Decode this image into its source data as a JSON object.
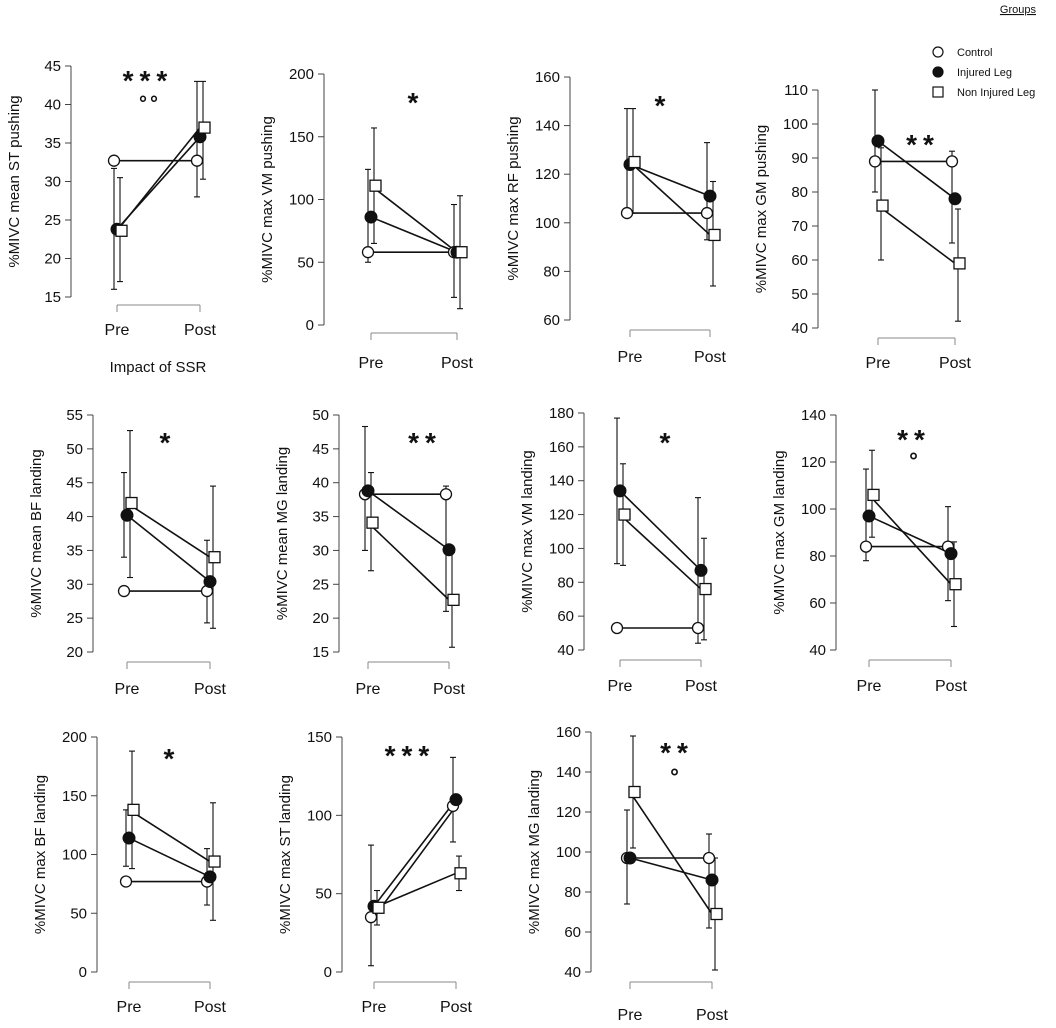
{
  "figure": {
    "legend_title": "Groups",
    "legend": [
      {
        "name": "Control",
        "marker": "open-circle"
      },
      {
        "name": "Injured Leg",
        "marker": "filled-circle"
      },
      {
        "name": "Non Injured Leg",
        "marker": "open-square"
      }
    ],
    "caption_label": "Impact of SSR"
  },
  "chart_data": [
    {
      "type": "line",
      "ylabel": "%MIVC mean ST pushing",
      "categories": [
        "Pre",
        "Post"
      ],
      "ylim": [
        15,
        45
      ],
      "yticks": [
        15,
        20,
        25,
        30,
        35,
        40,
        45
      ],
      "series": [
        {
          "name": "Control",
          "values": [
            32.7,
            32.7
          ]
        },
        {
          "name": "Injured Leg",
          "values": [
            23.8,
            35.8
          ]
        },
        {
          "name": "Non Injured Leg",
          "values": [
            23.6,
            37
          ]
        }
      ],
      "error_bars": [
        {
          "series": "Injured Leg",
          "point": "Pre",
          "low": 16,
          "high": 31.7
        },
        {
          "series": "Non Injured Leg",
          "point": "Pre",
          "low": 17,
          "high": 30.5
        },
        {
          "series": "Injured Leg",
          "point": "Post",
          "low": 28,
          "high": 43
        },
        {
          "series": "Non Injured Leg",
          "point": "Post",
          "low": 30.3,
          "high": 43
        }
      ],
      "annotations": [
        {
          "text": "***",
          "position": "top-center"
        },
        {
          "text": "°°",
          "position": "top-center"
        }
      ]
    },
    {
      "type": "line",
      "ylabel": "%MIVC max VM pushing",
      "categories": [
        "Pre",
        "Post"
      ],
      "ylim": [
        0,
        200
      ],
      "yticks": [
        0,
        50,
        100,
        150,
        200
      ],
      "series": [
        {
          "name": "Control",
          "values": [
            58,
            58
          ]
        },
        {
          "name": "Injured Leg",
          "values": [
            86,
            58
          ]
        },
        {
          "name": "Non Injured Leg",
          "values": [
            111,
            58
          ]
        }
      ],
      "error_bars": [
        {
          "series": "Injured Leg",
          "point": "Pre",
          "low": 50,
          "high": 124
        },
        {
          "series": "Non Injured Leg",
          "point": "Pre",
          "low": 65,
          "high": 157
        },
        {
          "series": "Injured Leg",
          "point": "Post",
          "low": 22,
          "high": 96
        },
        {
          "series": "Non Injured Leg",
          "point": "Post",
          "low": 13,
          "high": 103
        }
      ],
      "annotations": [
        {
          "text": "*",
          "position": "top-center"
        }
      ]
    },
    {
      "type": "line",
      "ylabel": "%MIVC max RF pushing",
      "categories": [
        "Pre",
        "Post"
      ],
      "ylim": [
        60,
        160
      ],
      "yticks": [
        60,
        80,
        100,
        120,
        140,
        160
      ],
      "series": [
        {
          "name": "Control",
          "values": [
            104,
            104
          ]
        },
        {
          "name": "Injured Leg",
          "values": [
            124,
            111
          ]
        },
        {
          "name": "Non Injured Leg",
          "values": [
            125,
            95
          ]
        }
      ],
      "error_bars": [
        {
          "series": "Injured Leg",
          "point": "Pre",
          "low": 104,
          "high": 147
        },
        {
          "series": "Non Injured Leg",
          "point": "Pre",
          "low": 104,
          "high": 147
        },
        {
          "series": "Injured Leg",
          "point": "Post",
          "low": 93,
          "high": 133
        },
        {
          "series": "Non Injured Leg",
          "point": "Post",
          "low": 74,
          "high": 117
        }
      ],
      "annotations": [
        {
          "text": "*",
          "position": "top-center"
        }
      ]
    },
    {
      "type": "line",
      "ylabel": "%MIVC max GM pushing",
      "categories": [
        "Pre",
        "Post"
      ],
      "ylim": [
        40,
        110
      ],
      "yticks": [
        40,
        50,
        60,
        70,
        80,
        90,
        100,
        110
      ],
      "series": [
        {
          "name": "Control",
          "values": [
            89,
            89
          ]
        },
        {
          "name": "Injured Leg",
          "values": [
            95,
            78
          ]
        },
        {
          "name": "Non Injured Leg",
          "values": [
            76,
            59
          ]
        }
      ],
      "error_bars": [
        {
          "series": "Injured Leg",
          "point": "Pre",
          "low": 80,
          "high": 110
        },
        {
          "series": "Non Injured Leg",
          "point": "Pre",
          "low": 60,
          "high": 93
        },
        {
          "series": "Injured Leg",
          "point": "Post",
          "low": 65,
          "high": 92
        },
        {
          "series": "Non Injured Leg",
          "point": "Post",
          "low": 42,
          "high": 75
        }
      ],
      "annotations": [
        {
          "text": "**",
          "position": "top-center"
        }
      ]
    },
    {
      "type": "line",
      "ylabel": "%MIVC mean BF landing",
      "categories": [
        "Pre",
        "Post"
      ],
      "ylim": [
        20,
        55
      ],
      "yticks": [
        20,
        25,
        30,
        35,
        40,
        45,
        50,
        55
      ],
      "series": [
        {
          "name": "Control",
          "values": [
            29,
            29
          ]
        },
        {
          "name": "Injured Leg",
          "values": [
            40.2,
            30.4
          ]
        },
        {
          "name": "Non Injured Leg",
          "values": [
            42,
            34
          ]
        }
      ],
      "error_bars": [
        {
          "series": "Injured Leg",
          "point": "Pre",
          "low": 34,
          "high": 46.5
        },
        {
          "series": "Non Injured Leg",
          "point": "Pre",
          "low": 31,
          "high": 52.7
        },
        {
          "series": "Injured Leg",
          "point": "Post",
          "low": 24.3,
          "high": 36.5
        },
        {
          "series": "Non Injured Leg",
          "point": "Post",
          "low": 23.5,
          "high": 44.5
        }
      ],
      "annotations": [
        {
          "text": "*",
          "position": "top-center"
        }
      ]
    },
    {
      "type": "line",
      "ylabel": "%MIVC mean MG landing",
      "categories": [
        "Pre",
        "Post"
      ],
      "ylim": [
        15,
        50
      ],
      "yticks": [
        15,
        20,
        25,
        30,
        35,
        40,
        45,
        50
      ],
      "series": [
        {
          "name": "Control",
          "values": [
            38.3,
            38.3
          ]
        },
        {
          "name": "Injured Leg",
          "values": [
            38.8,
            30.1
          ]
        },
        {
          "name": "Non Injured Leg",
          "values": [
            34.1,
            22.7
          ]
        }
      ],
      "error_bars": [
        {
          "series": "Injured Leg",
          "point": "Pre",
          "low": 30,
          "high": 48.3
        },
        {
          "series": "Non Injured Leg",
          "point": "Pre",
          "low": 27,
          "high": 41.5
        },
        {
          "series": "Injured Leg",
          "point": "Post",
          "low": 21,
          "high": 39.5
        },
        {
          "series": "Non Injured Leg",
          "point": "Post",
          "low": 15.7,
          "high": 29.7
        }
      ],
      "annotations": [
        {
          "text": "**",
          "position": "top-center"
        }
      ]
    },
    {
      "type": "line",
      "ylabel": "%MIVC max VM landing",
      "categories": [
        "Pre",
        "Post"
      ],
      "ylim": [
        40,
        180
      ],
      "yticks": [
        40,
        60,
        80,
        100,
        120,
        140,
        160,
        180
      ],
      "series": [
        {
          "name": "Control",
          "values": [
            53,
            53
          ]
        },
        {
          "name": "Injured Leg",
          "values": [
            134,
            87
          ]
        },
        {
          "name": "Non Injured Leg",
          "values": [
            120,
            76
          ]
        }
      ],
      "error_bars": [
        {
          "series": "Injured Leg",
          "point": "Pre",
          "low": 91,
          "high": 177
        },
        {
          "series": "Non Injured Leg",
          "point": "Pre",
          "low": 90,
          "high": 150
        },
        {
          "series": "Injured Leg",
          "point": "Post",
          "low": 44,
          "high": 130
        },
        {
          "series": "Non Injured Leg",
          "point": "Post",
          "low": 46,
          "high": 106
        }
      ],
      "annotations": [
        {
          "text": "*",
          "position": "top-center"
        }
      ]
    },
    {
      "type": "line",
      "ylabel": "%MIVC max GM landing",
      "categories": [
        "Pre",
        "Post"
      ],
      "ylim": [
        40,
        140
      ],
      "yticks": [
        40,
        60,
        80,
        100,
        120,
        140
      ],
      "series": [
        {
          "name": "Control",
          "values": [
            84,
            84
          ]
        },
        {
          "name": "Injured Leg",
          "values": [
            97,
            81
          ]
        },
        {
          "name": "Non Injured Leg",
          "values": [
            106,
            68
          ]
        }
      ],
      "error_bars": [
        {
          "series": "Injured Leg",
          "point": "Pre",
          "low": 78,
          "high": 117
        },
        {
          "series": "Non Injured Leg",
          "point": "Pre",
          "low": 88,
          "high": 125
        },
        {
          "series": "Injured Leg",
          "point": "Post",
          "low": 61,
          "high": 101
        },
        {
          "series": "Non Injured Leg",
          "point": "Post",
          "low": 50,
          "high": 86
        }
      ],
      "annotations": [
        {
          "text": "**",
          "position": "top-center"
        },
        {
          "text": "°",
          "position": "top-center"
        }
      ]
    },
    {
      "type": "line",
      "ylabel": "%MIVC max BF landing",
      "categories": [
        "Pre",
        "Post"
      ],
      "ylim": [
        0,
        200
      ],
      "yticks": [
        0,
        50,
        100,
        150,
        200
      ],
      "series": [
        {
          "name": "Control",
          "values": [
            77,
            77
          ]
        },
        {
          "name": "Injured Leg",
          "values": [
            114,
            81
          ]
        },
        {
          "name": "Non Injured Leg",
          "values": [
            138,
            94
          ]
        }
      ],
      "error_bars": [
        {
          "series": "Injured Leg",
          "point": "Pre",
          "low": 90,
          "high": 138
        },
        {
          "series": "Non Injured Leg",
          "point": "Pre",
          "low": 88,
          "high": 188
        },
        {
          "series": "Injured Leg",
          "point": "Post",
          "low": 57,
          "high": 105
        },
        {
          "series": "Non Injured Leg",
          "point": "Post",
          "low": 44,
          "high": 144
        }
      ],
      "annotations": [
        {
          "text": "*",
          "position": "top-center"
        }
      ]
    },
    {
      "type": "line",
      "ylabel": "%MIVC max ST landing",
      "categories": [
        "Pre",
        "Post"
      ],
      "ylim": [
        0,
        150
      ],
      "yticks": [
        0,
        50,
        100,
        150
      ],
      "series": [
        {
          "name": "Control",
          "values": [
            35,
            106
          ]
        },
        {
          "name": "Injured Leg",
          "values": [
            42,
            110
          ]
        },
        {
          "name": "Non Injured Leg",
          "values": [
            41,
            63
          ]
        }
      ],
      "error_bars": [
        {
          "series": "Injured Leg",
          "point": "Pre",
          "low": 4,
          "high": 81
        },
        {
          "series": "Non Injured Leg",
          "point": "Pre",
          "low": 30,
          "high": 52
        },
        {
          "series": "Injured Leg",
          "point": "Post",
          "low": 83,
          "high": 137
        },
        {
          "series": "Non Injured Leg",
          "point": "Post",
          "low": 52,
          "high": 74
        }
      ],
      "annotations": [
        {
          "text": "***",
          "position": "top-center"
        }
      ]
    },
    {
      "type": "line",
      "ylabel": "%MIVC max MG landing",
      "categories": [
        "Pre",
        "Post"
      ],
      "ylim": [
        40,
        160
      ],
      "yticks": [
        40,
        60,
        80,
        100,
        120,
        140,
        160
      ],
      "series": [
        {
          "name": "Control",
          "values": [
            97,
            97
          ]
        },
        {
          "name": "Injured Leg",
          "values": [
            97,
            86
          ]
        },
        {
          "name": "Non Injured Leg",
          "values": [
            130,
            69
          ]
        }
      ],
      "error_bars": [
        {
          "series": "Injured Leg",
          "point": "Pre",
          "low": 74,
          "high": 121
        },
        {
          "series": "Non Injured Leg",
          "point": "Pre",
          "low": 102,
          "high": 158
        },
        {
          "series": "Injured Leg",
          "point": "Post",
          "low": 62,
          "high": 109
        },
        {
          "series": "Non Injured Leg",
          "point": "Post",
          "low": 41,
          "high": 97
        }
      ],
      "annotations": [
        {
          "text": "**",
          "position": "top-center"
        },
        {
          "text": "°",
          "position": "top-center"
        }
      ]
    }
  ]
}
